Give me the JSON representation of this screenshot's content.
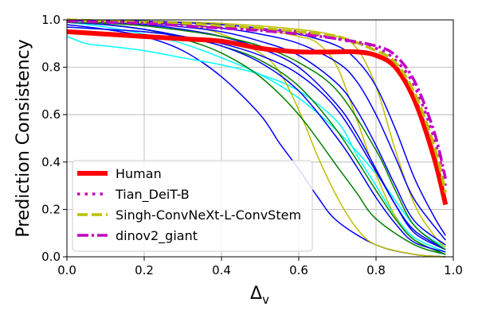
{
  "chart_data": {
    "type": "line",
    "title": "",
    "xlabel_base": "Δ",
    "xlabel_sub": "v",
    "ylabel": "Prediction Consistency",
    "xlim": [
      0.0,
      1.0
    ],
    "ylim": [
      0.0,
      1.0
    ],
    "xticks": [
      "0.0",
      "0.2",
      "0.4",
      "0.6",
      "0.8",
      "1.0"
    ],
    "yticks": [
      "0.0",
      "0.2",
      "0.4",
      "0.6",
      "0.8",
      "1.0"
    ],
    "grid": true,
    "legend_position": "lower-left",
    "legend": [
      {
        "label": "Human",
        "color": "#ff0000",
        "style": "solid-thick"
      },
      {
        "label": "Tian_DeiT-B",
        "color": "#c000c0",
        "style": "dotted"
      },
      {
        "label": "Singh-ConvNeXt-L-ConvStem",
        "color": "#bfbf00",
        "style": "dashed"
      },
      {
        "label": "dinov2_giant",
        "color": "#c000c0",
        "style": "dashdot"
      }
    ],
    "series": [
      {
        "name": "Human",
        "color": "#ff0000",
        "style": "solid-thick",
        "points": [
          [
            0.0,
            0.95
          ],
          [
            0.1,
            0.94
          ],
          [
            0.2,
            0.93
          ],
          [
            0.3,
            0.92
          ],
          [
            0.4,
            0.91
          ],
          [
            0.5,
            0.88
          ],
          [
            0.6,
            0.865
          ],
          [
            0.7,
            0.865
          ],
          [
            0.75,
            0.865
          ],
          [
            0.8,
            0.85
          ],
          [
            0.85,
            0.8
          ],
          [
            0.9,
            0.66
          ],
          [
            0.95,
            0.42
          ],
          [
            0.98,
            0.22
          ]
        ]
      },
      {
        "name": "Tian_DeiT-B",
        "color": "#c000c0",
        "style": "dotted",
        "points": [
          [
            0.0,
            1.0
          ],
          [
            0.1,
            0.995
          ],
          [
            0.2,
            0.99
          ],
          [
            0.3,
            0.98
          ],
          [
            0.4,
            0.97
          ],
          [
            0.5,
            0.96
          ],
          [
            0.6,
            0.95
          ],
          [
            0.7,
            0.92
          ],
          [
            0.8,
            0.88
          ],
          [
            0.85,
            0.83
          ],
          [
            0.9,
            0.72
          ],
          [
            0.95,
            0.5
          ],
          [
            0.98,
            0.3
          ]
        ]
      },
      {
        "name": "Singh-ConvNeXt-L-ConvStem",
        "color": "#bfbf00",
        "style": "dashed",
        "points": [
          [
            0.0,
            1.0
          ],
          [
            0.1,
            0.995
          ],
          [
            0.2,
            0.99
          ],
          [
            0.3,
            0.985
          ],
          [
            0.4,
            0.975
          ],
          [
            0.5,
            0.965
          ],
          [
            0.6,
            0.95
          ],
          [
            0.7,
            0.93
          ],
          [
            0.8,
            0.87
          ],
          [
            0.85,
            0.82
          ],
          [
            0.9,
            0.69
          ],
          [
            0.95,
            0.47
          ],
          [
            0.98,
            0.27
          ]
        ]
      },
      {
        "name": "dinov2_giant",
        "color": "#c000c0",
        "style": "dashdot",
        "points": [
          [
            0.0,
            0.995
          ],
          [
            0.1,
            0.99
          ],
          [
            0.2,
            0.985
          ],
          [
            0.3,
            0.975
          ],
          [
            0.4,
            0.965
          ],
          [
            0.5,
            0.955
          ],
          [
            0.6,
            0.94
          ],
          [
            0.7,
            0.92
          ],
          [
            0.8,
            0.89
          ],
          [
            0.85,
            0.85
          ],
          [
            0.9,
            0.74
          ],
          [
            0.95,
            0.53
          ],
          [
            0.98,
            0.33
          ]
        ]
      },
      {
        "name": "",
        "color": "#0000ff",
        "style": "thin",
        "points": [
          [
            0.0,
            0.98
          ],
          [
            0.1,
            0.96
          ],
          [
            0.2,
            0.93
          ],
          [
            0.3,
            0.87
          ],
          [
            0.4,
            0.76
          ],
          [
            0.5,
            0.6
          ],
          [
            0.55,
            0.48
          ],
          [
            0.6,
            0.37
          ],
          [
            0.65,
            0.25
          ],
          [
            0.7,
            0.15
          ],
          [
            0.8,
            0.05
          ],
          [
            0.9,
            0.01
          ],
          [
            0.98,
            0.0
          ]
        ]
      },
      {
        "name": "",
        "color": "#00ffff",
        "style": "thin",
        "points": [
          [
            0.0,
            0.93
          ],
          [
            0.05,
            0.9
          ],
          [
            0.1,
            0.89
          ],
          [
            0.2,
            0.87
          ],
          [
            0.3,
            0.84
          ],
          [
            0.4,
            0.81
          ],
          [
            0.5,
            0.77
          ],
          [
            0.6,
            0.7
          ],
          [
            0.7,
            0.57
          ],
          [
            0.75,
            0.43
          ],
          [
            0.8,
            0.3
          ],
          [
            0.85,
            0.17
          ],
          [
            0.9,
            0.08
          ],
          [
            0.98,
            0.02
          ]
        ]
      },
      {
        "name": "",
        "color": "#00ffff",
        "style": "thin",
        "points": [
          [
            0.0,
            0.99
          ],
          [
            0.1,
            0.97
          ],
          [
            0.2,
            0.94
          ],
          [
            0.3,
            0.9
          ],
          [
            0.4,
            0.84
          ],
          [
            0.5,
            0.77
          ],
          [
            0.6,
            0.67
          ],
          [
            0.7,
            0.53
          ],
          [
            0.8,
            0.35
          ],
          [
            0.9,
            0.13
          ],
          [
            0.98,
            0.04
          ]
        ]
      },
      {
        "name": "",
        "color": "#bfbf00",
        "style": "thin",
        "points": [
          [
            0.0,
            1.0
          ],
          [
            0.2,
            0.99
          ],
          [
            0.3,
            0.98
          ],
          [
            0.4,
            0.94
          ],
          [
            0.5,
            0.86
          ],
          [
            0.55,
            0.78
          ],
          [
            0.6,
            0.62
          ],
          [
            0.65,
            0.42
          ],
          [
            0.7,
            0.25
          ],
          [
            0.75,
            0.12
          ],
          [
            0.8,
            0.05
          ],
          [
            0.9,
            0.01
          ],
          [
            0.98,
            0.0
          ]
        ]
      },
      {
        "name": "",
        "color": "#bfbf00",
        "style": "thin",
        "points": [
          [
            0.0,
            1.0
          ],
          [
            0.2,
            0.995
          ],
          [
            0.4,
            0.98
          ],
          [
            0.5,
            0.96
          ],
          [
            0.6,
            0.93
          ],
          [
            0.65,
            0.9
          ],
          [
            0.7,
            0.8
          ],
          [
            0.75,
            0.58
          ],
          [
            0.8,
            0.35
          ],
          [
            0.85,
            0.17
          ],
          [
            0.9,
            0.07
          ],
          [
            0.98,
            0.01
          ]
        ]
      },
      {
        "name": "",
        "color": "#bfbf00",
        "style": "thin",
        "points": [
          [
            0.0,
            1.0
          ],
          [
            0.2,
            0.995
          ],
          [
            0.4,
            0.985
          ],
          [
            0.6,
            0.96
          ],
          [
            0.7,
            0.93
          ],
          [
            0.75,
            0.88
          ],
          [
            0.8,
            0.72
          ],
          [
            0.85,
            0.45
          ],
          [
            0.9,
            0.22
          ],
          [
            0.95,
            0.09
          ],
          [
            0.98,
            0.04
          ]
        ]
      },
      {
        "name": "",
        "color": "#008000",
        "style": "thin",
        "points": [
          [
            0.0,
            0.99
          ],
          [
            0.1,
            0.98
          ],
          [
            0.2,
            0.96
          ],
          [
            0.3,
            0.92
          ],
          [
            0.4,
            0.86
          ],
          [
            0.5,
            0.76
          ],
          [
            0.6,
            0.6
          ],
          [
            0.7,
            0.38
          ],
          [
            0.75,
            0.27
          ],
          [
            0.8,
            0.16
          ],
          [
            0.9,
            0.05
          ],
          [
            0.98,
            0.01
          ]
        ]
      },
      {
        "name": "",
        "color": "#008000",
        "style": "thin",
        "points": [
          [
            0.0,
            0.99
          ],
          [
            0.1,
            0.98
          ],
          [
            0.2,
            0.96
          ],
          [
            0.3,
            0.93
          ],
          [
            0.4,
            0.89
          ],
          [
            0.5,
            0.83
          ],
          [
            0.6,
            0.72
          ],
          [
            0.7,
            0.53
          ],
          [
            0.8,
            0.28
          ],
          [
            0.85,
            0.16
          ],
          [
            0.9,
            0.07
          ],
          [
            0.98,
            0.01
          ]
        ]
      },
      {
        "name": "",
        "color": "#0000ff",
        "style": "thin",
        "points": [
          [
            0.0,
            0.99
          ],
          [
            0.1,
            0.98
          ],
          [
            0.2,
            0.96
          ],
          [
            0.3,
            0.93
          ],
          [
            0.4,
            0.89
          ],
          [
            0.5,
            0.82
          ],
          [
            0.6,
            0.7
          ],
          [
            0.7,
            0.5
          ],
          [
            0.75,
            0.38
          ],
          [
            0.8,
            0.25
          ],
          [
            0.85,
            0.14
          ],
          [
            0.9,
            0.06
          ],
          [
            0.98,
            0.02
          ]
        ]
      },
      {
        "name": "",
        "color": "#0000ff",
        "style": "thin",
        "points": [
          [
            0.0,
            1.0
          ],
          [
            0.1,
            0.99
          ],
          [
            0.2,
            0.98
          ],
          [
            0.3,
            0.96
          ],
          [
            0.4,
            0.93
          ],
          [
            0.5,
            0.88
          ],
          [
            0.6,
            0.8
          ],
          [
            0.7,
            0.64
          ],
          [
            0.75,
            0.52
          ],
          [
            0.8,
            0.37
          ],
          [
            0.85,
            0.22
          ],
          [
            0.9,
            0.1
          ],
          [
            0.98,
            0.03
          ]
        ]
      },
      {
        "name": "",
        "color": "#0000ff",
        "style": "thin",
        "points": [
          [
            0.0,
            1.0
          ],
          [
            0.1,
            0.99
          ],
          [
            0.2,
            0.985
          ],
          [
            0.3,
            0.97
          ],
          [
            0.4,
            0.95
          ],
          [
            0.5,
            0.91
          ],
          [
            0.6,
            0.85
          ],
          [
            0.7,
            0.73
          ],
          [
            0.75,
            0.62
          ],
          [
            0.8,
            0.47
          ],
          [
            0.85,
            0.3
          ],
          [
            0.9,
            0.15
          ],
          [
            0.98,
            0.05
          ]
        ]
      },
      {
        "name": "",
        "color": "#0000ff",
        "style": "thin",
        "points": [
          [
            0.0,
            1.0
          ],
          [
            0.1,
            0.995
          ],
          [
            0.2,
            0.99
          ],
          [
            0.3,
            0.98
          ],
          [
            0.4,
            0.965
          ],
          [
            0.5,
            0.94
          ],
          [
            0.6,
            0.9
          ],
          [
            0.7,
            0.82
          ],
          [
            0.75,
            0.74
          ],
          [
            0.8,
            0.6
          ],
          [
            0.85,
            0.42
          ],
          [
            0.9,
            0.24
          ],
          [
            0.98,
            0.07
          ]
        ]
      },
      {
        "name": "",
        "color": "#0000ff",
        "style": "thin",
        "points": [
          [
            0.0,
            1.0
          ],
          [
            0.2,
            0.995
          ],
          [
            0.4,
            0.98
          ],
          [
            0.5,
            0.965
          ],
          [
            0.6,
            0.94
          ],
          [
            0.7,
            0.89
          ],
          [
            0.75,
            0.83
          ],
          [
            0.8,
            0.72
          ],
          [
            0.85,
            0.54
          ],
          [
            0.9,
            0.33
          ],
          [
            0.95,
            0.17
          ],
          [
            0.98,
            0.09
          ]
        ]
      },
      {
        "name": "",
        "color": "#0000ff",
        "style": "thin",
        "points": [
          [
            0.0,
            0.97
          ],
          [
            0.1,
            0.96
          ],
          [
            0.2,
            0.95
          ],
          [
            0.3,
            0.93
          ],
          [
            0.4,
            0.9
          ],
          [
            0.5,
            0.85
          ],
          [
            0.6,
            0.77
          ],
          [
            0.7,
            0.62
          ],
          [
            0.8,
            0.36
          ],
          [
            0.85,
            0.22
          ],
          [
            0.9,
            0.11
          ],
          [
            0.98,
            0.03
          ]
        ]
      },
      {
        "name": "",
        "color": "#008000",
        "style": "thin",
        "points": [
          [
            0.0,
            0.99
          ],
          [
            0.1,
            0.985
          ],
          [
            0.2,
            0.975
          ],
          [
            0.3,
            0.955
          ],
          [
            0.4,
            0.93
          ],
          [
            0.5,
            0.89
          ],
          [
            0.6,
            0.82
          ],
          [
            0.7,
            0.7
          ],
          [
            0.8,
            0.45
          ],
          [
            0.85,
            0.28
          ],
          [
            0.9,
            0.13
          ],
          [
            0.98,
            0.03
          ]
        ]
      }
    ]
  }
}
